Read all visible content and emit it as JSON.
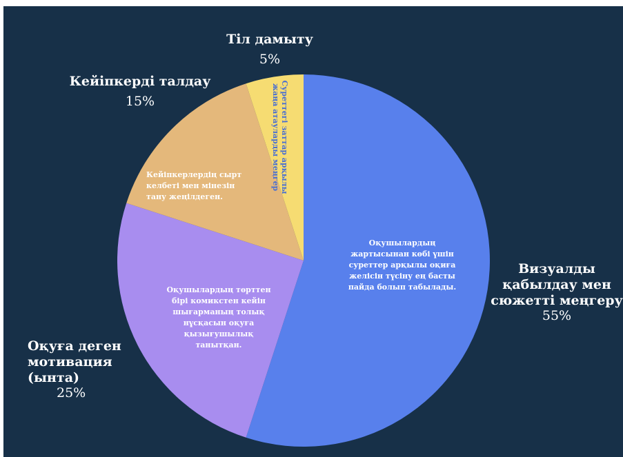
{
  "chart_data": {
    "type": "pie",
    "slices": [
      {
        "name": "Визуалды қабылдау мен сюжетті меңгеру",
        "label_lines": [
          "Визуалды",
          "қабылдау мен",
          "сюжетті меңгеру"
        ],
        "value": 55,
        "percent_label": "55%",
        "description": "Оқушылардың жартысынан көбі үшін суреттер арқылы оқиға желісін түсіну ең басты пайда болып табылады.",
        "color": "#5880ec"
      },
      {
        "name": "Оқуға деген мотивация (ынта)",
        "label_lines": [
          "Оқуға деген",
          "мотивация",
          "(ынта)"
        ],
        "value": 25,
        "percent_label": "25%",
        "description": "Оқушылардың төрттен бірі комикстен кейін шығарманың толық нұсқасын оқуға қызығушылық танытқан.",
        "color": "#a88def"
      },
      {
        "name": "Кейіпкерді талдау",
        "label_lines": [
          "Кейіпкерді талдау"
        ],
        "value": 15,
        "percent_label": "15%",
        "description": "Кейіпкерлердің сырт келбеті мен мінезін тану жеңілдеген.",
        "color": "#e4b87b"
      },
      {
        "name": "Тіл дамыту",
        "label_lines": [
          "Тіл дамыту"
        ],
        "value": 5,
        "percent_label": "5%",
        "description": "Суреттегі заттар арқылы жаңа атауларды меңгер",
        "color": "#f6dc72"
      }
    ],
    "start_angle": "top",
    "direction": "clockwise",
    "legend": "none",
    "background_color": "#173048",
    "label_color": "#ffffff"
  }
}
